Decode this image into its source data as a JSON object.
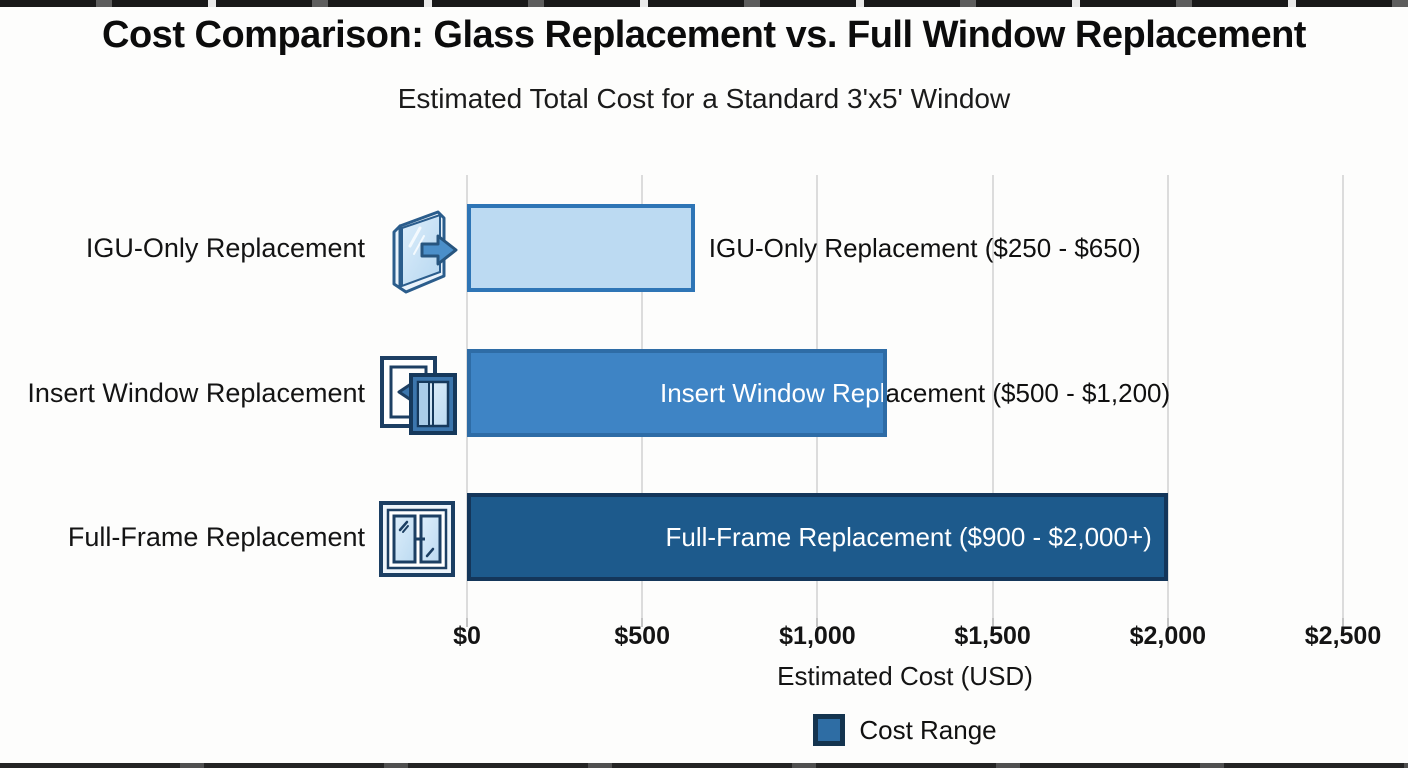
{
  "chart_data": {
    "type": "bar",
    "orientation": "horizontal",
    "title": "Cost Comparison: Glass Replacement vs. Full Window Replacement",
    "subtitle": "Estimated Total Cost for a Standard 3'x5' Window",
    "categories": [
      "IGU-Only Replacement",
      "Insert Window Replacement",
      "Full-Frame Replacement"
    ],
    "series": [
      {
        "name": "Cost Range",
        "values": [
          650,
          1200,
          2000
        ],
        "cost_ranges": [
          [
            250,
            650
          ],
          [
            500,
            1200
          ],
          [
            900,
            2000
          ]
        ]
      }
    ],
    "bar_labels": [
      "IGU-Only Replacement ($250 - $650)",
      "Insert Window Replacement ($500 - $1,200)",
      "Full-Frame Replacement ($900 - $2,000+)"
    ],
    "bar_colors": [
      {
        "fill": "#bcdaf2",
        "border": "#2e75b6"
      },
      {
        "fill": "#3e84c5",
        "border": "#2e6ca6"
      },
      {
        "fill": "#1d5a8c",
        "border": "#14365a"
      }
    ],
    "xlabel": "Estimated Cost (USD)",
    "x_ticks": [
      "$0",
      "$500",
      "$1,000",
      "$1,500",
      "$2,000",
      "$2,500"
    ],
    "xlim": [
      0,
      2500
    ],
    "grid": true,
    "legend": {
      "position": "bottom",
      "entries": [
        {
          "label": "Cost Range",
          "fill": "#2e6da4",
          "border": "#14344f"
        }
      ]
    },
    "icons": [
      "igu-glass-pane-with-arrow",
      "insert-window-with-arrow",
      "full-frame-double-window"
    ]
  }
}
